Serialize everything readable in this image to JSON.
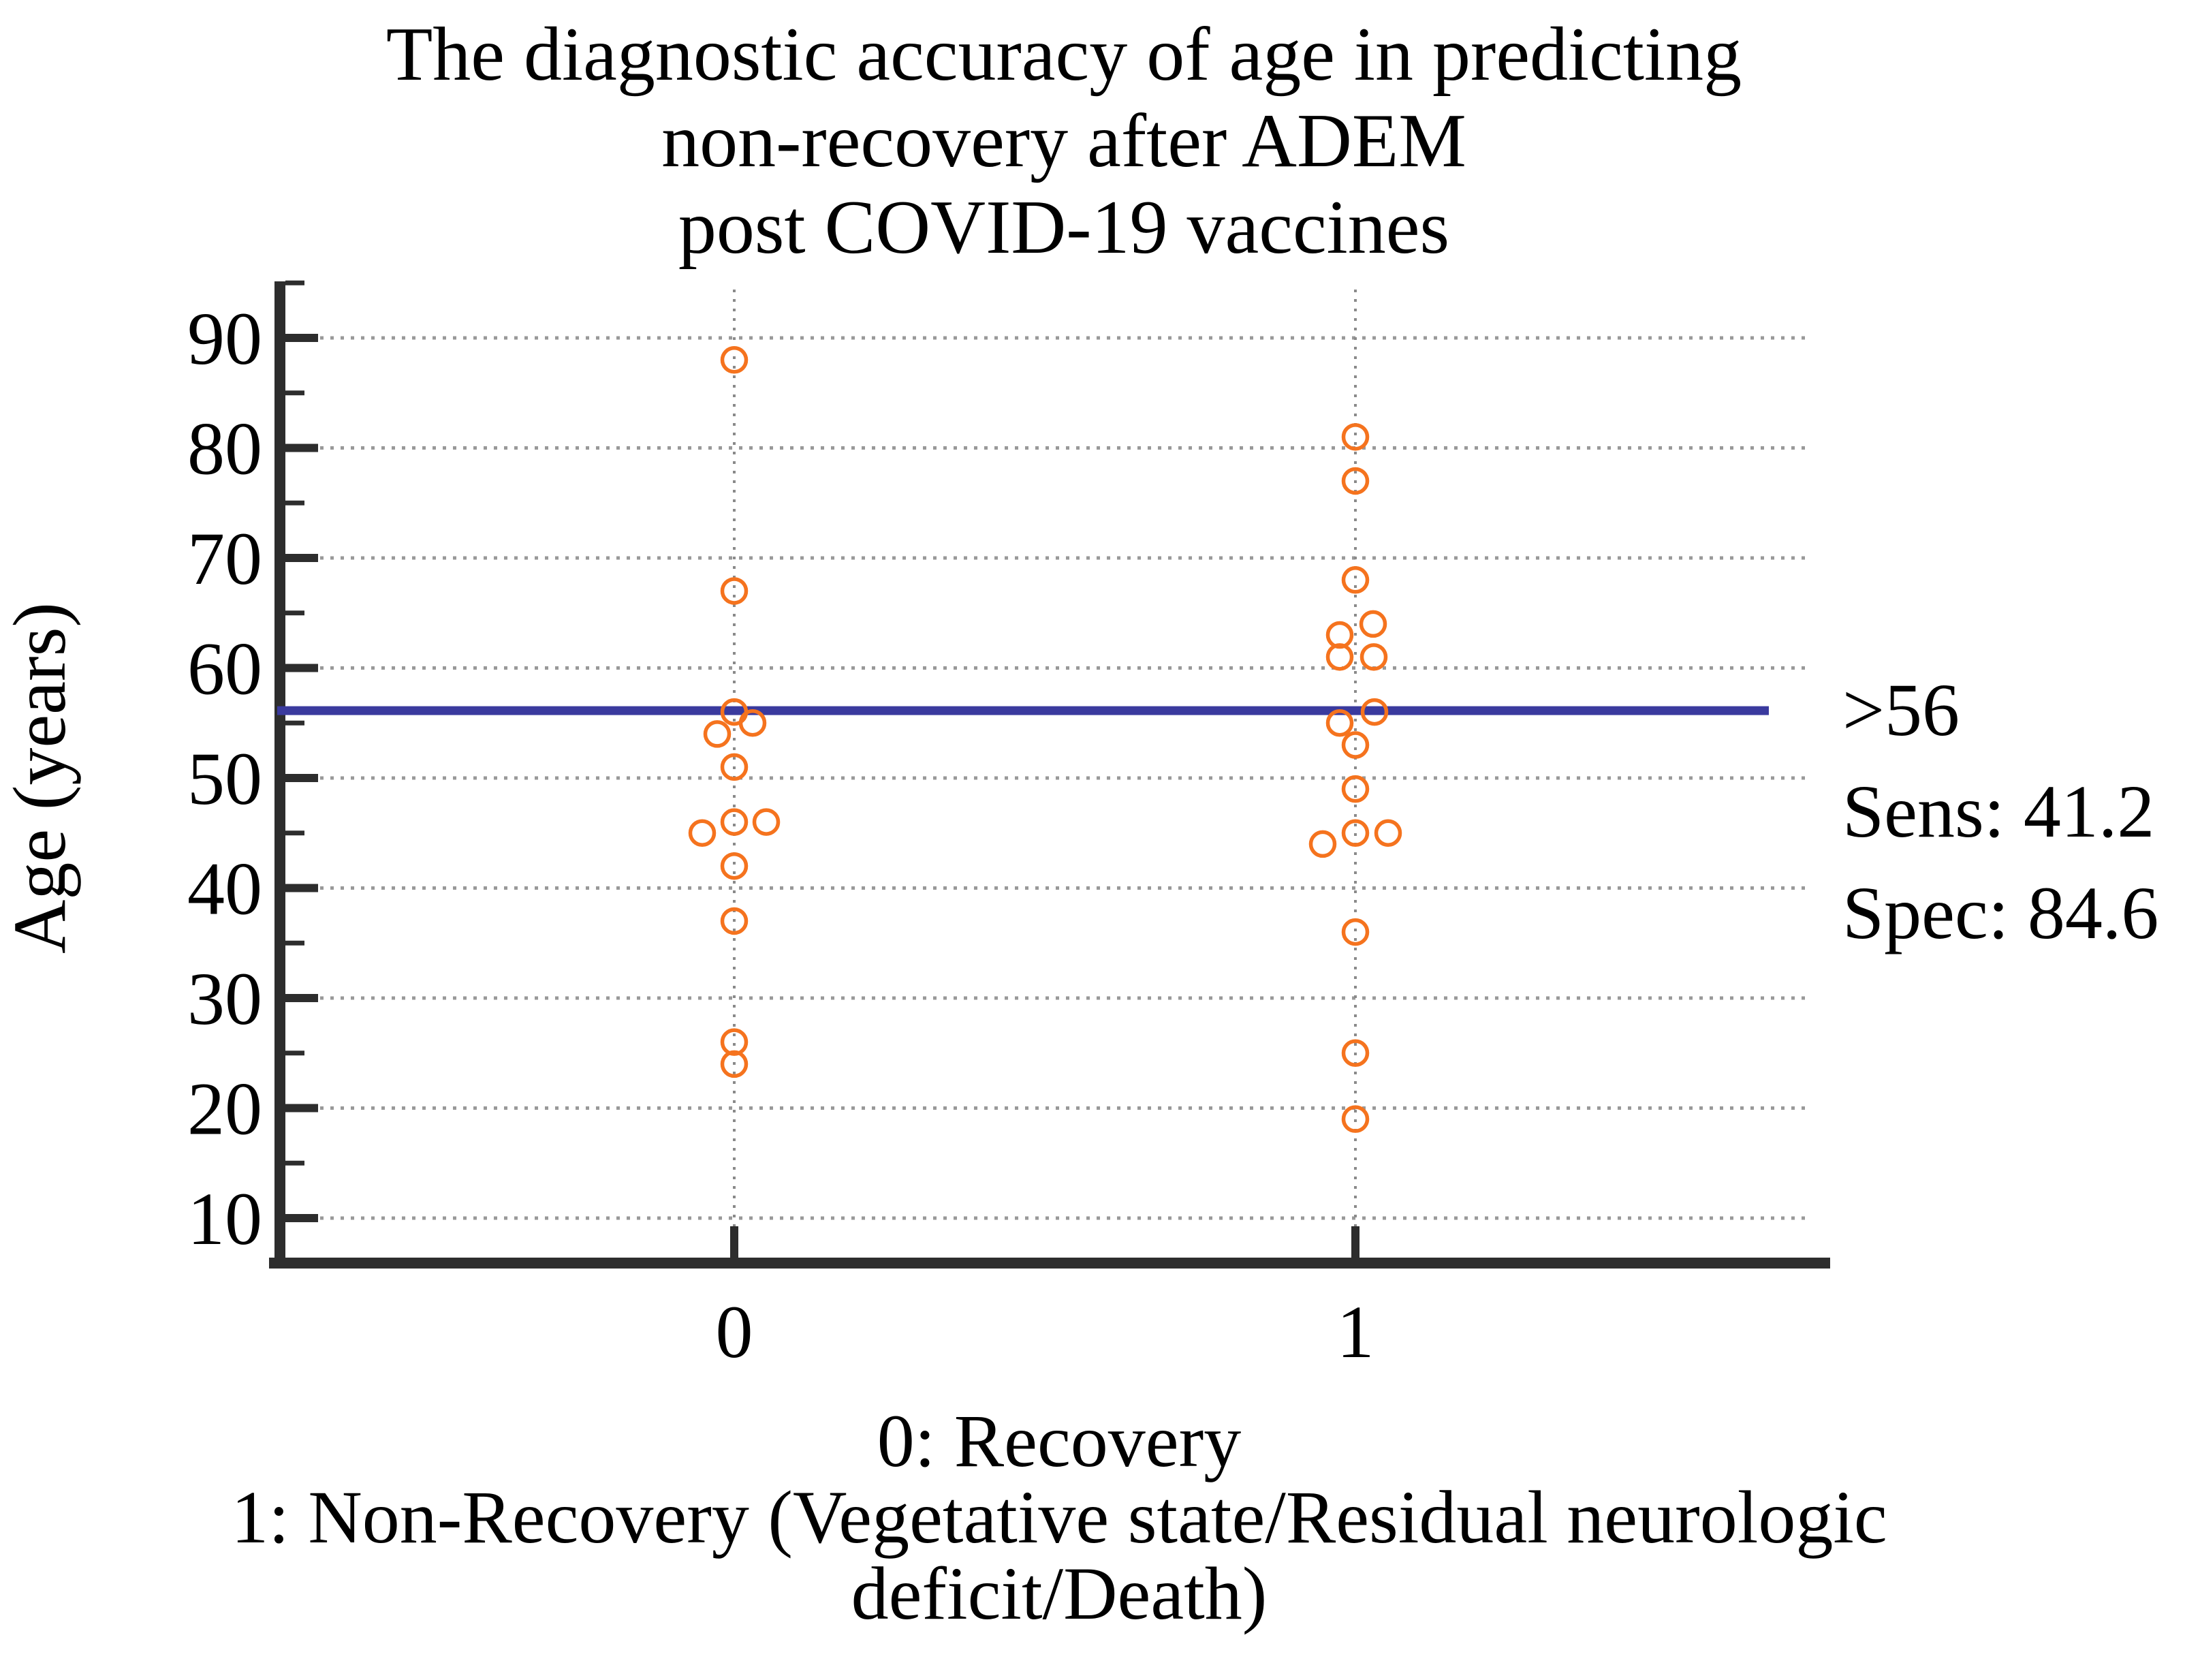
{
  "title": {
    "line1": "The diagnostic accuracy of age in predicting",
    "line2": "non-recovery after ADEM",
    "line3": "post COVID-19 vaccines"
  },
  "y_axis": {
    "label": "Age (years)"
  },
  "x_axis": {
    "tick0": "0",
    "tick1": "1"
  },
  "annotation": {
    "cutoff": ">56",
    "sens": "Sens: 41.2",
    "spec": "Spec: 84.6"
  },
  "caption": {
    "line1": "0: Recovery",
    "line2": "1: Non-Recovery (Vegetative state/Residual neurologic",
    "line3": "deficit/Death)"
  },
  "chart_data": {
    "type": "scatter",
    "title": "The diagnostic accuracy of age in predicting non-recovery after ADEM post COVID-19 vaccines",
    "ylabel": "Age (years)",
    "xlabel": "",
    "ylim": [
      5,
      95
    ],
    "yticks": [
      90,
      80,
      70,
      60,
      50,
      40,
      30,
      20,
      10
    ],
    "y_minor_ticks": [
      95,
      85,
      75,
      65,
      55,
      45,
      35,
      25,
      15
    ],
    "categories": [
      "0",
      "1"
    ],
    "category_legend": [
      "0: Recovery",
      "1: Non-Recovery (Vegetative state/Residual neurologic deficit/Death)"
    ],
    "grid": "horizontal-dotted",
    "legend_position": "right-of-plot",
    "cutoff": {
      "value": 56,
      "label": ">56",
      "sensitivity": 41.2,
      "specificity": 84.6
    },
    "series": [
      {
        "name": "Recovery",
        "category": "0",
        "points": [
          {
            "v": 88,
            "dx": 0
          },
          {
            "v": 67,
            "dx": 0
          },
          {
            "v": 56,
            "dx": 0
          },
          {
            "v": 55,
            "dx": 27
          },
          {
            "v": 54,
            "dx": -25
          },
          {
            "v": 51,
            "dx": 0
          },
          {
            "v": 46,
            "dx": 0
          },
          {
            "v": 46,
            "dx": 47
          },
          {
            "v": 45,
            "dx": -47
          },
          {
            "v": 42,
            "dx": 0
          },
          {
            "v": 37,
            "dx": 0
          },
          {
            "v": 26,
            "dx": 0
          },
          {
            "v": 24,
            "dx": 0
          }
        ]
      },
      {
        "name": "Non-Recovery",
        "category": "1",
        "points": [
          {
            "v": 81,
            "dx": 0
          },
          {
            "v": 77,
            "dx": 0
          },
          {
            "v": 68,
            "dx": 0
          },
          {
            "v": 64,
            "dx": 26
          },
          {
            "v": 63,
            "dx": -23
          },
          {
            "v": 61,
            "dx": -23
          },
          {
            "v": 61,
            "dx": 27
          },
          {
            "v": 56,
            "dx": 28
          },
          {
            "v": 55,
            "dx": -23
          },
          {
            "v": 53,
            "dx": 0
          },
          {
            "v": 49,
            "dx": 0
          },
          {
            "v": 45,
            "dx": 0
          },
          {
            "v": 45,
            "dx": 48
          },
          {
            "v": 44,
            "dx": -48
          },
          {
            "v": 36,
            "dx": 0
          },
          {
            "v": 25,
            "dx": 0
          },
          {
            "v": 19,
            "dx": 0
          }
        ]
      }
    ],
    "colors": {
      "point": "#F5731E",
      "cutoff_line": "#3A3A9E",
      "grid": "#999999",
      "column_guide": "#8A8A8A",
      "axis": "#2D2D2D",
      "text": "#000000"
    }
  }
}
